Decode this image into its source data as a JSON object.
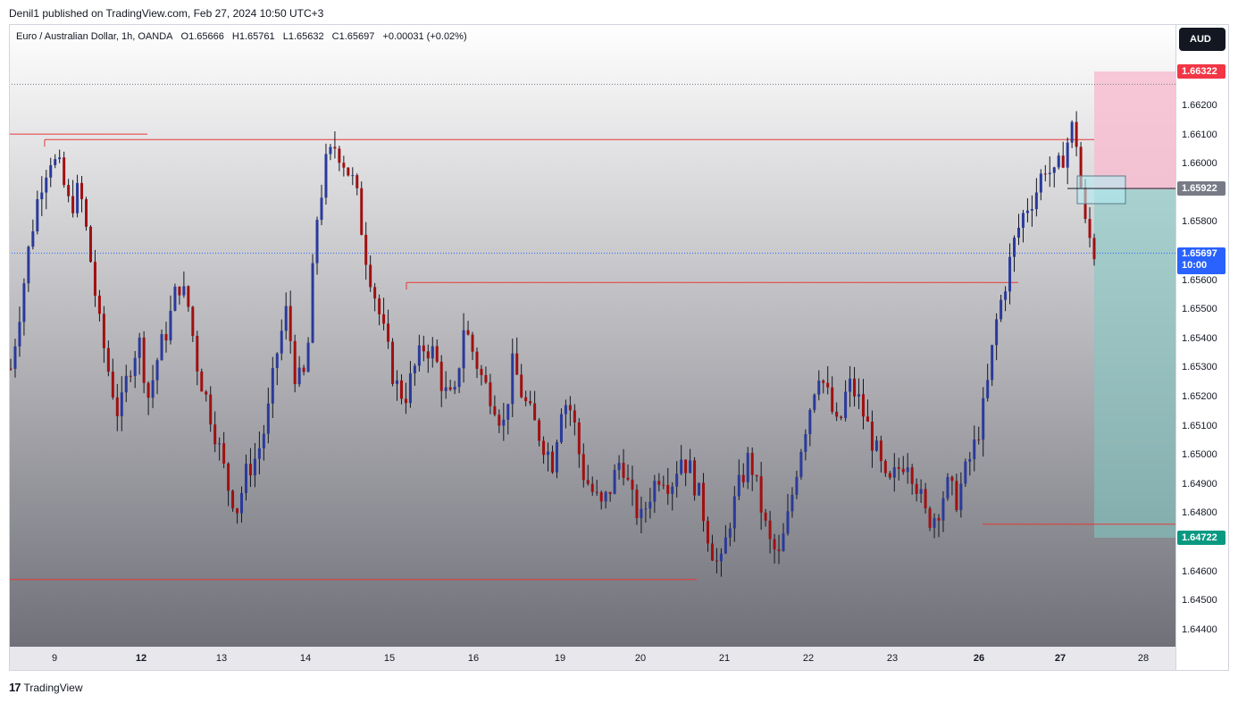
{
  "header": {
    "published": "Denil1 published on TradingView.com, Feb 27, 2024 10:50 UTC+3"
  },
  "legend": {
    "symbol": "Euro / Australian Dollar, 1h, OANDA",
    "open": "O1.65666",
    "high": "H1.65761",
    "low": "L1.65632",
    "close": "C1.65697",
    "change": "+0.00031 (+0.02%)"
  },
  "currency_button": "AUD",
  "footer": {
    "brand": "TradingView",
    "mark": "17"
  },
  "yaxis_ticks": [
    "1.66200",
    "1.66100",
    "1.66000",
    "1.65800",
    "1.65600",
    "1.65500",
    "1.65400",
    "1.65300",
    "1.65200",
    "1.65100",
    "1.65000",
    "1.64900",
    "1.64800",
    "1.64600",
    "1.64500",
    "1.64400"
  ],
  "xaxis_ticks": [
    "9",
    "12",
    "13",
    "14",
    "15",
    "16",
    "19",
    "20",
    "21",
    "22",
    "23",
    "26",
    "27",
    "28"
  ],
  "price_tags": {
    "stop": "1.66322",
    "entry": "1.65922",
    "current_price": "1.65697",
    "countdown": "10:00",
    "target": "1.64722"
  },
  "colors": {
    "bull": "#2a3a9a",
    "bear": "#a01010",
    "level_line": "#e53935",
    "stop_tag": "#f23645",
    "entry_tag": "#787b86",
    "current_tag": "#2962ff",
    "target_tag": "#089981",
    "stop_zone": "#f8bbd0",
    "target_zone": "#80cbc4"
  },
  "chart_data": {
    "type": "candlestick",
    "symbol": "EURAUD",
    "timeframe": "1h",
    "ylim": [
      1.6435,
      1.664
    ],
    "levels": [
      {
        "price": 1.66106,
        "style": "solid"
      },
      {
        "price": 1.66087,
        "style": "solid"
      },
      {
        "price": 1.65596,
        "style": "solid"
      },
      {
        "price": 1.64765,
        "style": "solid"
      },
      {
        "price": 1.64575,
        "style": "solid"
      }
    ],
    "dotted_levels": [
      1.66277,
      1.65697
    ],
    "position": {
      "side": "short",
      "entry": 1.65922,
      "stop": 1.66322,
      "target": 1.64722
    },
    "close_path": [
      1.653,
      1.6552,
      1.6575,
      1.6593,
      1.6603,
      1.6598,
      1.6585,
      1.6592,
      1.657,
      1.6545,
      1.6528,
      1.6513,
      1.653,
      1.654,
      1.652,
      1.6535,
      1.6545,
      1.656,
      1.6552,
      1.653,
      1.6518,
      1.6505,
      1.649,
      1.6482,
      1.6495,
      1.65,
      1.6512,
      1.6535,
      1.655,
      1.6525,
      1.6528,
      1.658,
      1.66,
      1.6607,
      1.66,
      1.6592,
      1.657,
      1.6555,
      1.654,
      1.6525,
      1.652,
      1.653,
      1.6538,
      1.6535,
      1.6522,
      1.6518,
      1.6545,
      1.6535,
      1.6525,
      1.652,
      1.651,
      1.6532,
      1.652,
      1.6512,
      1.6505,
      1.6498,
      1.652,
      1.6515,
      1.6495,
      1.6488,
      1.6482,
      1.649,
      1.65,
      1.6485,
      1.6478,
      1.6488,
      1.6495,
      1.649,
      1.65,
      1.6495,
      1.6485,
      1.647,
      1.646,
      1.6478,
      1.649,
      1.65,
      1.6485,
      1.647,
      1.6465,
      1.648,
      1.65,
      1.6515,
      1.653,
      1.652,
      1.6508,
      1.6525,
      1.652,
      1.651,
      1.65,
      1.6488,
      1.6495,
      1.65,
      1.649,
      1.6478,
      1.648,
      1.649,
      1.6485,
      1.6495,
      1.6505,
      1.652,
      1.6545,
      1.656,
      1.6575,
      1.6585,
      1.659,
      1.66,
      1.6595,
      1.6605,
      1.6615,
      1.658,
      1.657
    ]
  }
}
